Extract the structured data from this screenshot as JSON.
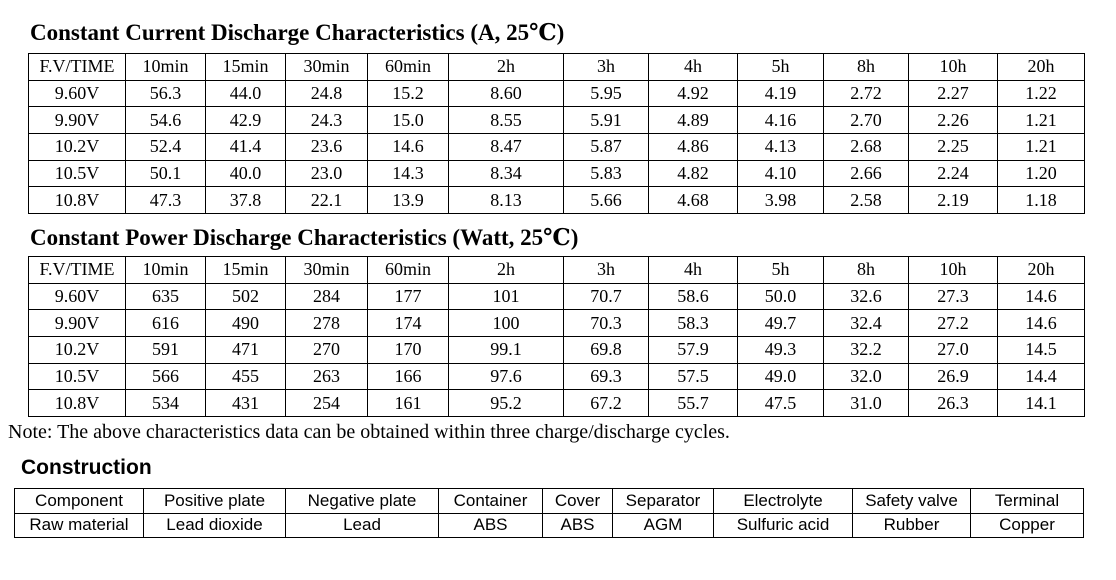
{
  "current": {
    "title": "Constant Current Discharge Characteristics (A, 25℃)",
    "headers": [
      "F.V/TIME",
      "10min",
      "15min",
      "30min",
      "60min",
      "2h",
      "3h",
      "4h",
      "5h",
      "8h",
      "10h",
      "20h"
    ],
    "rows": [
      [
        "9.60V",
        "56.3",
        "44.0",
        "24.8",
        "15.2",
        "8.60",
        "5.95",
        "4.92",
        "4.19",
        "2.72",
        "2.27",
        "1.22"
      ],
      [
        "9.90V",
        "54.6",
        "42.9",
        "24.3",
        "15.0",
        "8.55",
        "5.91",
        "4.89",
        "4.16",
        "2.70",
        "2.26",
        "1.21"
      ],
      [
        "10.2V",
        "52.4",
        "41.4",
        "23.6",
        "14.6",
        "8.47",
        "5.87",
        "4.86",
        "4.13",
        "2.68",
        "2.25",
        "1.21"
      ],
      [
        "10.5V",
        "50.1",
        "40.0",
        "23.0",
        "14.3",
        "8.34",
        "5.83",
        "4.82",
        "4.10",
        "2.66",
        "2.24",
        "1.20"
      ],
      [
        "10.8V",
        "47.3",
        "37.8",
        "22.1",
        "13.9",
        "8.13",
        "5.66",
        "4.68",
        "3.98",
        "2.58",
        "2.19",
        "1.18"
      ]
    ]
  },
  "power": {
    "title": "Constant Power Discharge Characteristics (Watt, 25℃)",
    "headers": [
      "F.V/TIME",
      "10min",
      "15min",
      "30min",
      "60min",
      "2h",
      "3h",
      "4h",
      "5h",
      "8h",
      "10h",
      "20h"
    ],
    "rows": [
      [
        "9.60V",
        "635",
        "502",
        "284",
        "177",
        "101",
        "70.7",
        "58.6",
        "50.0",
        "32.6",
        "27.3",
        "14.6"
      ],
      [
        "9.90V",
        "616",
        "490",
        "278",
        "174",
        "100",
        "70.3",
        "58.3",
        "49.7",
        "32.4",
        "27.2",
        "14.6"
      ],
      [
        "10.2V",
        "591",
        "471",
        "270",
        "170",
        "99.1",
        "69.8",
        "57.9",
        "49.3",
        "32.2",
        "27.0",
        "14.5"
      ],
      [
        "10.5V",
        "566",
        "455",
        "263",
        "166",
        "97.6",
        "69.3",
        "57.5",
        "49.0",
        "32.0",
        "26.9",
        "14.4"
      ],
      [
        "10.8V",
        "534",
        "431",
        "254",
        "161",
        "95.2",
        "67.2",
        "55.7",
        "47.5",
        "31.0",
        "26.3",
        "14.1"
      ]
    ]
  },
  "note": {
    "text": "Note: The above characteristics data can be obtained within three charge/discharge cycles."
  },
  "construction": {
    "title": "Construction",
    "rows": [
      [
        "Component",
        "Positive plate",
        "Negative plate",
        "Container",
        "Cover",
        "Separator",
        "Electrolyte",
        "Safety valve",
        "Terminal"
      ],
      [
        "Raw material",
        "Lead dioxide",
        "Lead",
        "ABS",
        "ABS",
        "AGM",
        "Sulfuric acid",
        "Rubber",
        "Copper"
      ]
    ]
  }
}
